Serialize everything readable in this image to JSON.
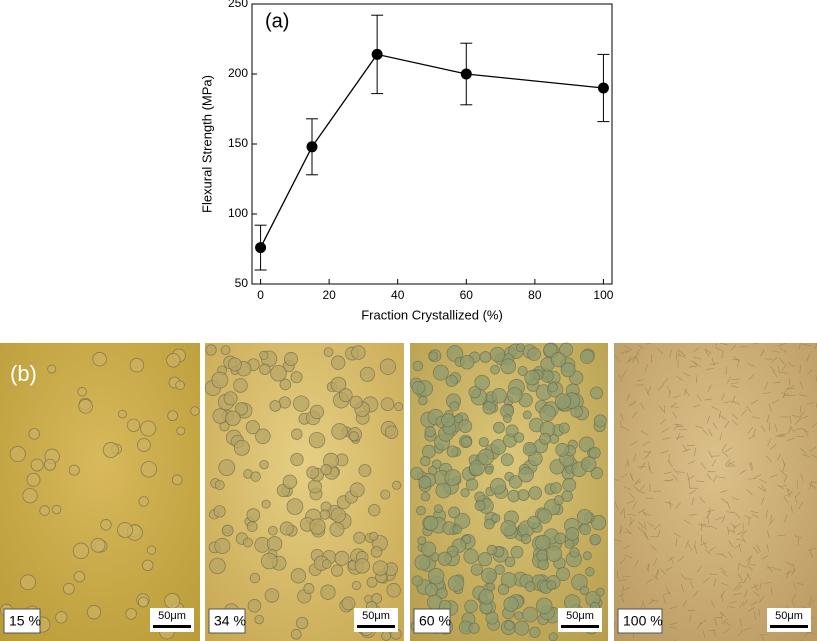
{
  "chart_data": {
    "type": "line",
    "annotation": "(a)",
    "xlabel": "Fraction Crystallized (%)",
    "ylabel": "Flexural Strength (MPa)",
    "x": [
      0,
      15,
      34,
      60,
      100
    ],
    "series": [
      {
        "color": "#000000",
        "values": [
          76,
          148,
          214,
          200,
          190
        ],
        "errors": [
          16,
          20,
          28,
          22,
          24
        ]
      }
    ],
    "xlim": [
      -2.5,
      102.5
    ],
    "xticks": [
      0,
      20,
      40,
      60,
      80,
      100
    ],
    "ylim": [
      50,
      250
    ],
    "yticks": [
      50,
      100,
      150,
      200,
      250
    ]
  },
  "panel_label": "(b)",
  "micrographs": [
    {
      "label": "15 %",
      "scale": "50μm"
    },
    {
      "label": "34 %",
      "scale": "50μm"
    },
    {
      "label": "60 %",
      "scale": "50μm"
    },
    {
      "label": "100 %",
      "scale": "50μm"
    }
  ]
}
